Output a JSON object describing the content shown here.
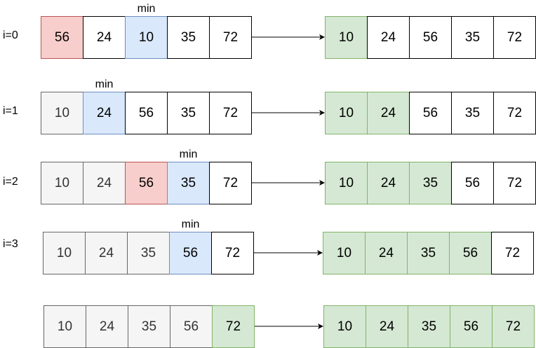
{
  "diagram": {
    "min_label": "min",
    "rows": [
      {
        "iteration": "i=0",
        "min_index": 2,
        "before": [
          {
            "value": "56",
            "state": "current"
          },
          {
            "value": "24",
            "state": "normal"
          },
          {
            "value": "10",
            "state": "min"
          },
          {
            "value": "35",
            "state": "normal"
          },
          {
            "value": "72",
            "state": "normal"
          }
        ],
        "after": [
          {
            "value": "10",
            "state": "sorted"
          },
          {
            "value": "24",
            "state": "normal"
          },
          {
            "value": "56",
            "state": "normal"
          },
          {
            "value": "35",
            "state": "normal"
          },
          {
            "value": "72",
            "state": "normal"
          }
        ]
      },
      {
        "iteration": "i=1",
        "min_index": 1,
        "before": [
          {
            "value": "10",
            "state": "done"
          },
          {
            "value": "24",
            "state": "min"
          },
          {
            "value": "56",
            "state": "normal"
          },
          {
            "value": "35",
            "state": "normal"
          },
          {
            "value": "72",
            "state": "normal"
          }
        ],
        "after": [
          {
            "value": "10",
            "state": "sorted"
          },
          {
            "value": "24",
            "state": "sorted"
          },
          {
            "value": "56",
            "state": "normal"
          },
          {
            "value": "35",
            "state": "normal"
          },
          {
            "value": "72",
            "state": "normal"
          }
        ]
      },
      {
        "iteration": "i=2",
        "min_index": 3,
        "before": [
          {
            "value": "10",
            "state": "done"
          },
          {
            "value": "24",
            "state": "done"
          },
          {
            "value": "56",
            "state": "current"
          },
          {
            "value": "35",
            "state": "min"
          },
          {
            "value": "72",
            "state": "normal"
          }
        ],
        "after": [
          {
            "value": "10",
            "state": "sorted"
          },
          {
            "value": "24",
            "state": "sorted"
          },
          {
            "value": "35",
            "state": "sorted"
          },
          {
            "value": "56",
            "state": "normal"
          },
          {
            "value": "72",
            "state": "normal"
          }
        ]
      },
      {
        "iteration": "i=3",
        "min_index": 3,
        "before": [
          {
            "value": "10",
            "state": "done"
          },
          {
            "value": "24",
            "state": "done"
          },
          {
            "value": "35",
            "state": "done"
          },
          {
            "value": "56",
            "state": "min"
          },
          {
            "value": "72",
            "state": "normal"
          }
        ],
        "after": [
          {
            "value": "10",
            "state": "sorted"
          },
          {
            "value": "24",
            "state": "sorted"
          },
          {
            "value": "35",
            "state": "sorted"
          },
          {
            "value": "56",
            "state": "sorted"
          },
          {
            "value": "72",
            "state": "normal"
          }
        ]
      },
      {
        "iteration": "",
        "min_index": null,
        "before": [
          {
            "value": "10",
            "state": "done"
          },
          {
            "value": "24",
            "state": "done"
          },
          {
            "value": "35",
            "state": "done"
          },
          {
            "value": "56",
            "state": "done"
          },
          {
            "value": "72",
            "state": "sorted"
          }
        ],
        "after": [
          {
            "value": "10",
            "state": "sorted"
          },
          {
            "value": "24",
            "state": "sorted"
          },
          {
            "value": "35",
            "state": "sorted"
          },
          {
            "value": "56",
            "state": "sorted"
          },
          {
            "value": "72",
            "state": "sorted"
          }
        ]
      }
    ]
  }
}
